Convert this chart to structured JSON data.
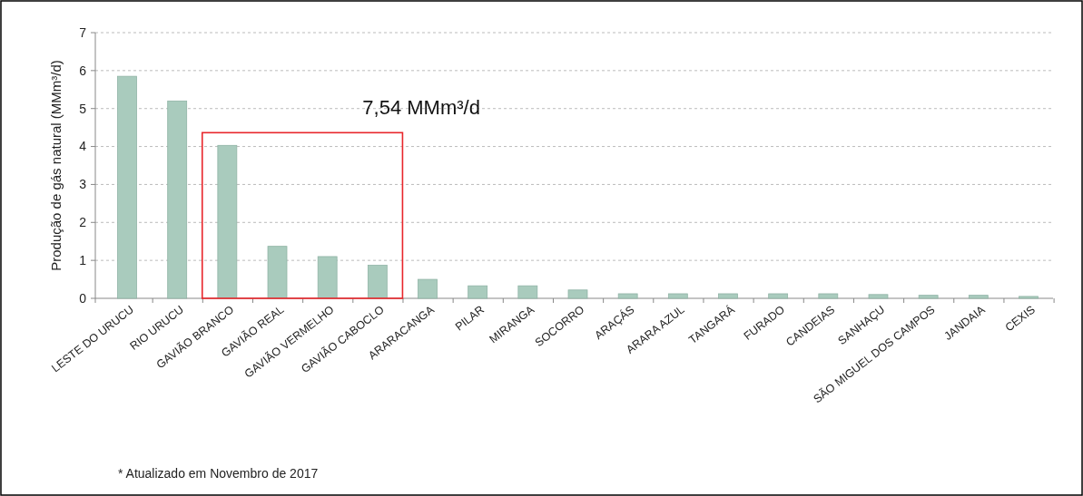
{
  "chart_data": {
    "type": "bar",
    "ylabel": "Produção de gás natural (MMm³/d)",
    "categories": [
      "LESTE DO URUCU",
      "RIO URUCU",
      "GAVIÃO BRANCO",
      "GAVIÃO REAL",
      "GAVIÃO VERMELHO",
      "GAVIÃO CABOCLO",
      "ARARACANGA",
      "PILAR",
      "MIRANGA",
      "SOCORRO",
      "ARAÇÁS",
      "ARARA AZUL",
      "TANGARÁ",
      "FURADO",
      "CANDEIAS",
      "SANHAÇU",
      "SÃO MIGUEL DOS CAMPOS",
      "JANDAIA",
      "CEXIS"
    ],
    "values": [
      5.85,
      5.2,
      4.03,
      1.37,
      1.1,
      0.87,
      0.5,
      0.33,
      0.33,
      0.22,
      0.12,
      0.12,
      0.12,
      0.12,
      0.12,
      0.1,
      0.08,
      0.08,
      0.05
    ],
    "color": "#a9cbbd",
    "ylim": [
      0,
      7
    ],
    "yticks": [
      0,
      1,
      2,
      3,
      4,
      5,
      6,
      7
    ],
    "grid": "y",
    "annotations": [
      "7,54 MMm³/d",
      "* Atualizado em Novembro de 2017"
    ]
  }
}
